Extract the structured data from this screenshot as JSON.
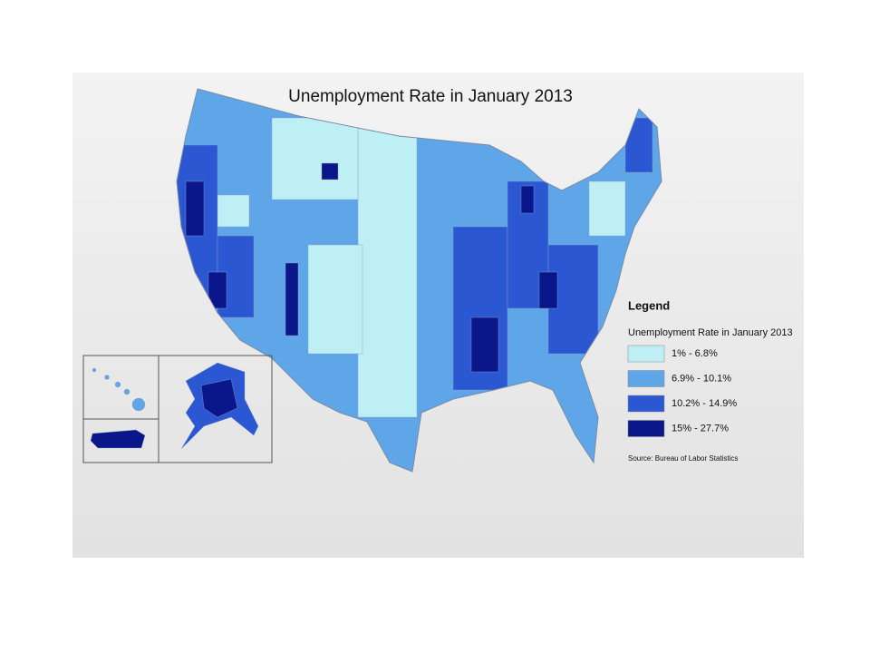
{
  "map": {
    "title": "Unemployment Rate in January 2013",
    "legend": {
      "heading": "Legend",
      "title": "Unemployment Rate in January 2013",
      "items": [
        {
          "label": "1% - 6.8%",
          "color": "#bdeff5"
        },
        {
          "label": "6.9% - 10.1%",
          "color": "#5fa6e8"
        },
        {
          "label": "10.2% - 14.9%",
          "color": "#2b57d2"
        },
        {
          "label": "15% - 27.7%",
          "color": "#0b168a"
        }
      ]
    },
    "source": "Source: Bureau of Labor Statistics"
  }
}
